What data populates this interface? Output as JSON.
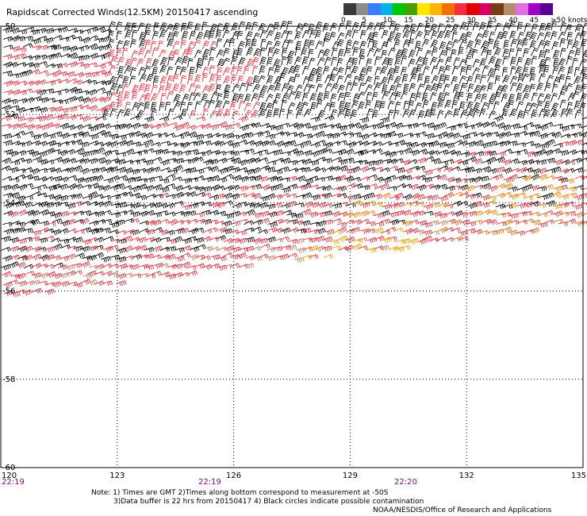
{
  "title": "Rapidscat Corrected Winds(12.5KM) 20150417 ascending",
  "legend": {
    "colors": [
      "#3a3a3a",
      "#8c8c8c",
      "#3b7bff",
      "#00b4e6",
      "#00c800",
      "#46a000",
      "#ffe600",
      "#ffb400",
      "#f07000",
      "#f03040",
      "#e00000",
      "#d80060",
      "#7a3c14",
      "#b48c6e",
      "#e070e0",
      "#a000c8",
      "#5a0096"
    ],
    "tick_labels": [
      "0",
      "5",
      "10",
      "15",
      "20",
      "25",
      "30",
      "35",
      "40",
      "45",
      ">50 knots"
    ]
  },
  "map": {
    "lon_labels": [
      "120",
      "123",
      "126",
      "129",
      "132",
      "135"
    ],
    "lat_labels": [
      "-50",
      "-52",
      "-54",
      "-56",
      "-58",
      "-60"
    ],
    "time_labels": [
      "22:19",
      "22:19",
      "22:20"
    ]
  },
  "notes": {
    "line1": "Note: 1) Times are GMT 2)Times along bottom correspond to measurement at -50S",
    "line2": "3)Data buffer is 22 hrs from 20150417 4) Black circles indicate possible contamination",
    "credit": "NOAA/NESDIS/Office of Research and Applications"
  }
}
